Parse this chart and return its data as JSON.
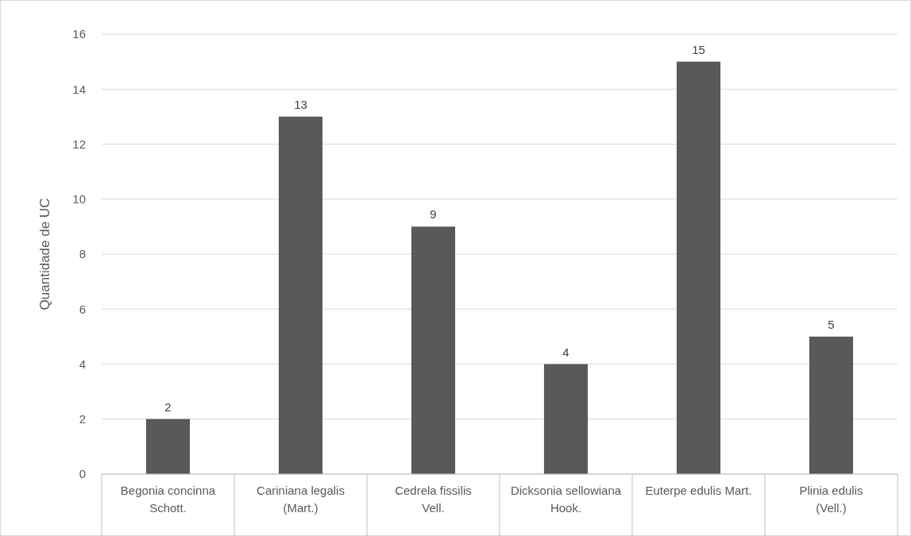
{
  "chart_data": {
    "type": "bar",
    "ylabel": "Quantidade de UC",
    "categories": [
      "Begonia concinna Schott.",
      "Cariniana legalis (Mart.)",
      "Cedrela fissilis Vell.",
      "Dicksonia sellowiana Hook.",
      "Euterpe edulis Mart.",
      "Plinia edulis (Vell.)"
    ],
    "values": [
      2,
      13,
      9,
      4,
      15,
      5
    ],
    "color": "#595959",
    "ylim": [
      0,
      16
    ],
    "yticks": [
      0,
      2,
      4,
      6,
      8,
      10,
      12,
      14,
      16
    ],
    "grid": "y",
    "data_labels": true
  }
}
